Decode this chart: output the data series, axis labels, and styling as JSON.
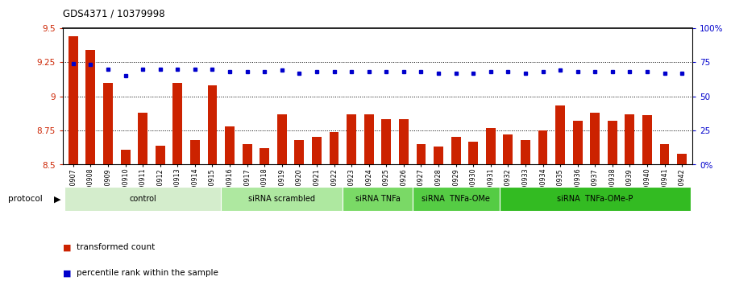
{
  "title": "GDS4371 / 10379998",
  "samples": [
    "GSM790907",
    "GSM790908",
    "GSM790909",
    "GSM790910",
    "GSM790911",
    "GSM790912",
    "GSM790913",
    "GSM790914",
    "GSM790915",
    "GSM790916",
    "GSM790917",
    "GSM790918",
    "GSM790919",
    "GSM790920",
    "GSM790921",
    "GSM790922",
    "GSM790923",
    "GSM790924",
    "GSM790925",
    "GSM790926",
    "GSM790927",
    "GSM790928",
    "GSM790929",
    "GSM790930",
    "GSM790931",
    "GSM790932",
    "GSM790933",
    "GSM790934",
    "GSM790935",
    "GSM790936",
    "GSM790937",
    "GSM790938",
    "GSM790939",
    "GSM790940",
    "GSM790941",
    "GSM790942"
  ],
  "bar_values": [
    9.44,
    9.34,
    9.1,
    8.61,
    8.88,
    8.64,
    9.1,
    8.68,
    9.08,
    8.78,
    8.65,
    8.62,
    8.87,
    8.68,
    8.7,
    8.74,
    8.87,
    8.87,
    8.83,
    8.83,
    8.65,
    8.63,
    8.7,
    8.67,
    8.77,
    8.72,
    8.68,
    8.75,
    8.93,
    8.82,
    8.88,
    8.82,
    8.87,
    8.86,
    8.65,
    8.58
  ],
  "percentile_values": [
    74,
    73,
    70,
    65,
    70,
    70,
    70,
    70,
    70,
    68,
    68,
    68,
    69,
    67,
    68,
    68,
    68,
    68,
    68,
    68,
    68,
    67,
    67,
    67,
    68,
    68,
    67,
    68,
    69,
    68,
    68,
    68,
    68,
    68,
    67,
    67
  ],
  "bar_color": "#cc2200",
  "dot_color": "#0000cc",
  "ylim_left": [
    8.5,
    9.5
  ],
  "ylim_right": [
    0,
    100
  ],
  "yticks_left": [
    8.5,
    8.75,
    9.0,
    9.25,
    9.5
  ],
  "yticks_right": [
    0,
    25,
    50,
    75,
    100
  ],
  "ytick_labels_left": [
    "8.5",
    "8.75",
    "9",
    "9.25",
    "9.5"
  ],
  "ytick_labels_right": [
    "0%",
    "25",
    "50",
    "75",
    "100%"
  ],
  "groups": [
    {
      "label": "control",
      "start": 0,
      "end": 9,
      "color": "#d4edcc"
    },
    {
      "label": "siRNA scrambled",
      "start": 9,
      "end": 16,
      "color": "#aee8a0"
    },
    {
      "label": "siRNA TNFa",
      "start": 16,
      "end": 20,
      "color": "#7ad966"
    },
    {
      "label": "siRNA  TNFa-OMe",
      "start": 20,
      "end": 25,
      "color": "#55cc44"
    },
    {
      "label": "siRNA  TNFa-OMe-P",
      "start": 25,
      "end": 36,
      "color": "#33bb22"
    }
  ],
  "protocol_label": "protocol",
  "legend_items": [
    {
      "label": "transformed count",
      "color": "#cc2200"
    },
    {
      "label": "percentile rank within the sample",
      "color": "#0000cc"
    }
  ],
  "background_color": "#ffffff",
  "tick_label_color_left": "#cc2200",
  "tick_label_color_right": "#0000cc"
}
